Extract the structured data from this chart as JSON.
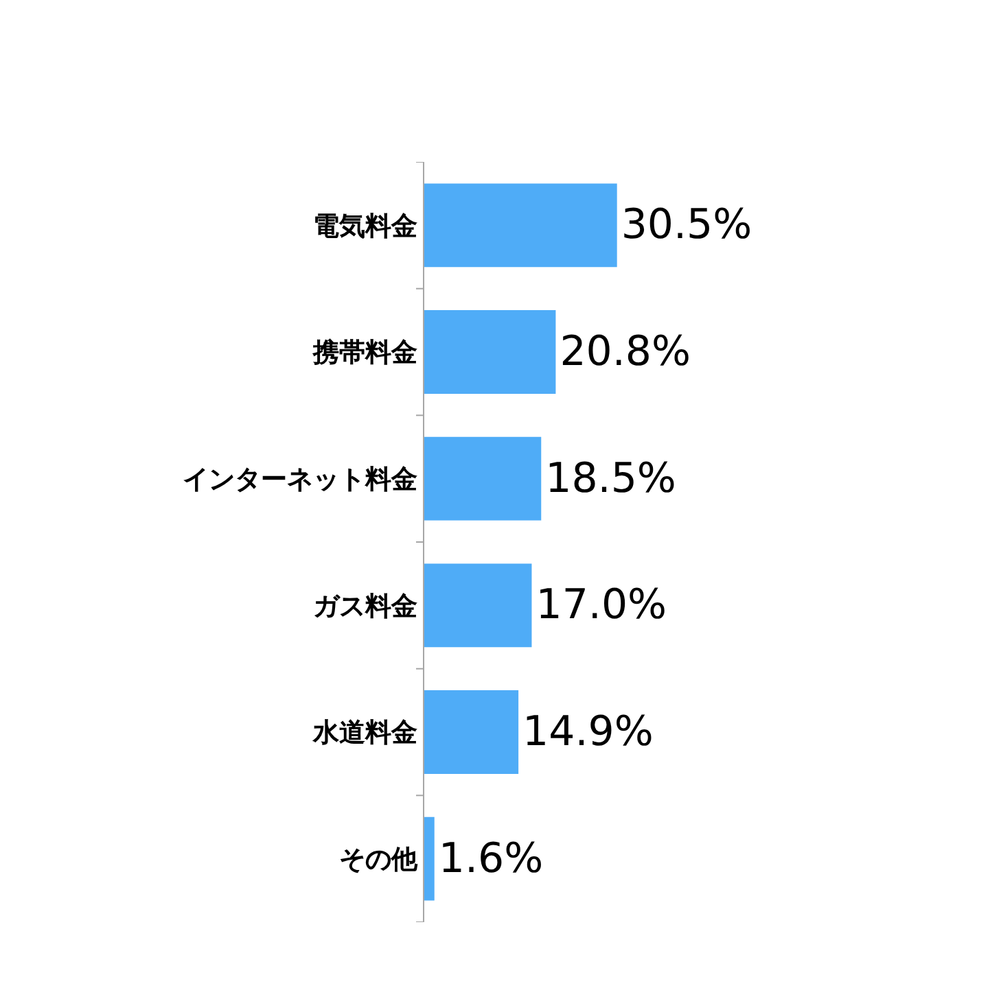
{
  "chart_data": {
    "type": "bar",
    "orientation": "horizontal",
    "categories": [
      "電気料金",
      "携帯料金",
      "インターネット料金",
      "ガス料金",
      "水道料金",
      "その他"
    ],
    "values": [
      30.5,
      20.8,
      18.5,
      17.0,
      14.9,
      1.6
    ],
    "value_labels": [
      "30.5%",
      "20.8%",
      "18.5%",
      "17.0%",
      "14.9%",
      "1.6%"
    ],
    "color": "#4facf7"
  }
}
